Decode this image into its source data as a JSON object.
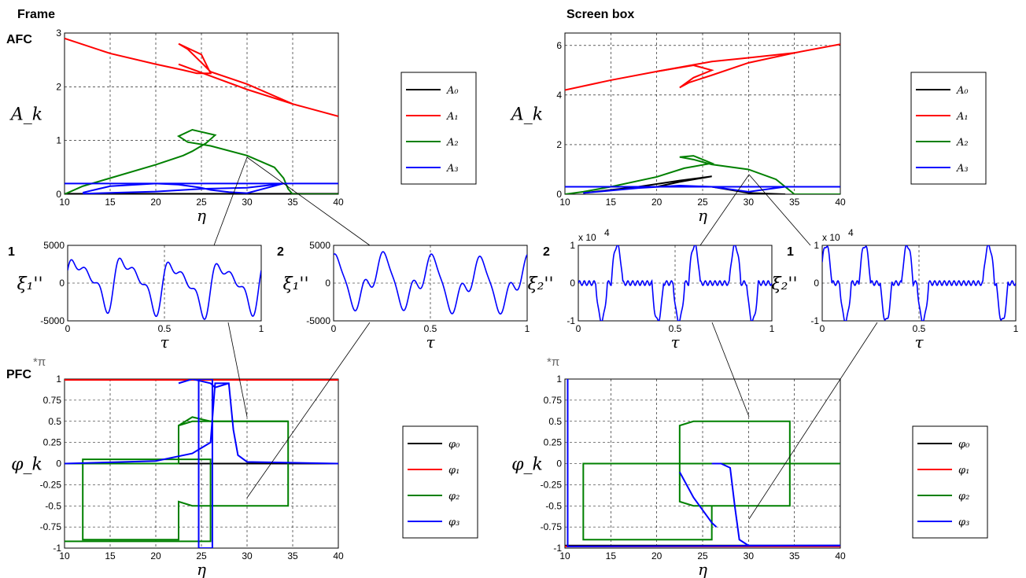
{
  "labels": {
    "frame": "Frame",
    "screen_box": "Screen box",
    "afc": "AFC",
    "pfc": "PFC",
    "panel_1": "1",
    "panel_2": "2",
    "pi_mult": "*π",
    "exp": "x 10"
  },
  "chart_data": [
    {
      "id": "frame-afc",
      "type": "line",
      "xlabel": "η",
      "ylabel": "A_k",
      "xlim": [
        10,
        40
      ],
      "ylim": [
        0,
        3
      ],
      "xticks": [
        10,
        15,
        20,
        25,
        30,
        35,
        40
      ],
      "yticks": [
        0,
        1,
        2,
        3
      ],
      "grid": true,
      "legend": "right",
      "series": [
        {
          "name": "A₀",
          "color": "#000000",
          "x": [
            10,
            40
          ],
          "y": [
            0.01,
            0.01
          ]
        },
        {
          "name": "A₁",
          "color": "#ff0000",
          "x": [
            10,
            15,
            20,
            23,
            24.5,
            26,
            25,
            23.5,
            22.5,
            23.5,
            25,
            26,
            30,
            35,
            40
          ],
          "y": [
            2.9,
            2.62,
            2.42,
            2.31,
            2.25,
            2.25,
            2.6,
            2.72,
            2.8,
            2.7,
            2.45,
            2.28,
            2.05,
            1.68,
            1.45
          ]
        },
        {
          "name": "A₁",
          "color": "#ff0000",
          "x": [
            22.5,
            26,
            30,
            35
          ],
          "y": [
            2.42,
            2.2,
            1.95,
            1.68
          ]
        },
        {
          "name": "A₂",
          "color": "#008000",
          "x": [
            10,
            12,
            15,
            20,
            23,
            24,
            25.5,
            26.5,
            24,
            22.5,
            23.5,
            26,
            30,
            33,
            34,
            34.5,
            35,
            40
          ],
          "y": [
            0,
            0.15,
            0.3,
            0.55,
            0.72,
            0.8,
            0.95,
            1.1,
            1.2,
            1.08,
            0.97,
            0.9,
            0.72,
            0.5,
            0.3,
            0.1,
            0,
            0
          ]
        },
        {
          "name": "A₃",
          "color": "#0000ff",
          "x": [
            10,
            40
          ],
          "y": [
            0.2,
            0.2
          ]
        },
        {
          "name": "A₃",
          "color": "#0000ff",
          "x": [
            12,
            15,
            20,
            22.5,
            25,
            26,
            28,
            30,
            34
          ],
          "y": [
            0.03,
            0.15,
            0.2,
            0.18,
            0.12,
            0.08,
            0.04,
            0.02,
            0.2
          ]
        },
        {
          "name": "A₃",
          "color": "#0000ff",
          "x": [
            12,
            20,
            25,
            30,
            34
          ],
          "y": [
            0.01,
            0.05,
            0.1,
            0.12,
            0.2
          ]
        }
      ]
    },
    {
      "id": "screen-afc",
      "type": "line",
      "xlabel": "η",
      "ylabel": "A_k",
      "xlim": [
        10,
        40
      ],
      "ylim": [
        0,
        6.5
      ],
      "xticks": [
        10,
        15,
        20,
        25,
        30,
        35,
        40
      ],
      "yticks": [
        0,
        2,
        4,
        6
      ],
      "grid": true,
      "legend": "right",
      "series": [
        {
          "name": "A₀",
          "color": "#000000",
          "x": [
            12,
            18,
            22.5,
            26,
            22.5,
            20,
            26,
            30,
            34
          ],
          "y": [
            0.05,
            0.3,
            0.55,
            0.72,
            0.5,
            0.3,
            0.3,
            0.05,
            0.0
          ]
        },
        {
          "name": "A₁",
          "color": "#ff0000",
          "x": [
            10,
            15,
            20,
            24,
            26,
            24,
            22.5,
            23.5,
            26,
            30,
            35,
            40
          ],
          "y": [
            4.2,
            4.6,
            4.95,
            5.2,
            5.0,
            4.7,
            4.3,
            4.5,
            4.8,
            5.3,
            5.7,
            6.05
          ]
        },
        {
          "name": "A₁",
          "color": "#ff0000",
          "x": [
            20,
            26,
            30,
            35
          ],
          "y": [
            4.95,
            5.35,
            5.5,
            5.7
          ]
        },
        {
          "name": "A₂",
          "color": "#008000",
          "x": [
            10,
            12,
            15,
            20,
            23,
            26,
            24,
            22.5,
            24,
            26,
            30,
            33,
            34.5,
            35,
            40
          ],
          "y": [
            0,
            0.1,
            0.3,
            0.7,
            1.05,
            1.25,
            1.55,
            1.5,
            1.4,
            1.2,
            1.0,
            0.6,
            0.15,
            0,
            0
          ]
        },
        {
          "name": "A₃",
          "color": "#0000ff",
          "x": [
            10,
            40
          ],
          "y": [
            0.3,
            0.3
          ]
        },
        {
          "name": "A₃",
          "color": "#0000ff",
          "x": [
            12,
            18,
            22.5,
            26,
            30,
            34
          ],
          "y": [
            0.05,
            0.25,
            0.35,
            0.3,
            0.1,
            0.3
          ]
        }
      ]
    },
    {
      "id": "frame-xi-1",
      "type": "line",
      "xlabel": "τ",
      "ylabel": "ξ₁''",
      "xlim": [
        0,
        1
      ],
      "ylim": [
        -5000,
        5000
      ],
      "xticks": [
        0,
        0.5,
        1
      ],
      "yticks": [
        -5000,
        0,
        5000
      ],
      "ytick_labels": [
        "-5000",
        "0",
        "5000"
      ],
      "grid": true,
      "signal": {
        "color": "#0000ff",
        "components": [
          [
            4,
            2600,
            0.0
          ],
          [
            8,
            1300,
            0.6
          ],
          [
            12,
            900,
            1.2
          ],
          [
            1,
            400,
            0.3
          ]
        ]
      }
    },
    {
      "id": "frame-xi-2",
      "type": "line",
      "xlabel": "τ",
      "ylabel": "ξ₁''",
      "xlim": [
        0,
        1
      ],
      "ylim": [
        -5000,
        5000
      ],
      "xticks": [
        0,
        0.5,
        1
      ],
      "yticks": [
        -5000,
        0,
        5000
      ],
      "ytick_labels": [
        "-5000",
        "0",
        "5000"
      ],
      "grid": true,
      "signal": {
        "color": "#0000ff",
        "components": [
          [
            4,
            2800,
            1.57
          ],
          [
            8,
            1200,
            0.2
          ],
          [
            12,
            800,
            2.0
          ],
          [
            1,
            300,
            0.0
          ]
        ]
      }
    },
    {
      "id": "screen-xi-2",
      "type": "line",
      "xlabel": "τ",
      "ylabel": "ξ₂''",
      "xlim": [
        0,
        1
      ],
      "ylim": [
        -1,
        1
      ],
      "xticks": [
        0,
        0.5,
        1
      ],
      "yticks": [
        -1,
        0,
        1
      ],
      "ytick_labels": [
        "-1",
        "0",
        "1"
      ],
      "exponent": "4",
      "grid": true,
      "pulses": {
        "color": "#0000ff",
        "pos": [
          0.2,
          0.6,
          0.81
        ],
        "neg": [
          0.12,
          0.41,
          0.52,
          0.9
        ]
      }
    },
    {
      "id": "screen-xi-1",
      "type": "line",
      "xlabel": "τ",
      "ylabel": "ξ₂''",
      "xlim": [
        0,
        1
      ],
      "ylim": [
        -1,
        1
      ],
      "xticks": [
        0,
        0.5,
        1
      ],
      "yticks": [
        -1,
        0,
        1
      ],
      "ytick_labels": [
        "-1",
        "0",
        "1"
      ],
      "exponent": "4",
      "grid": true,
      "pulses": {
        "color": "#0000ff",
        "pos": [
          0.02,
          0.22,
          0.44,
          0.86
        ],
        "neg": [
          0.12,
          0.33,
          0.52,
          0.93
        ]
      }
    },
    {
      "id": "frame-pfc",
      "type": "line",
      "xlabel": "η",
      "ylabel": "φ_k",
      "xlim": [
        10,
        40
      ],
      "ylim": [
        -1,
        1
      ],
      "xticks": [
        10,
        15,
        20,
        25,
        30,
        35,
        40
      ],
      "yticks": [
        -1,
        -0.75,
        -0.5,
        -0.25,
        0,
        0.25,
        0.5,
        0.75,
        1
      ],
      "ytick_labels": [
        "-1",
        "-0.75",
        "-0.5",
        "-0.25",
        "0",
        "0.25",
        "0.5",
        "0.75",
        "1"
      ],
      "grid": true,
      "legend": "right",
      "series": [
        {
          "name": "φ₀",
          "color": "#000000",
          "x": [
            10,
            40
          ],
          "y": [
            0.0,
            0.0
          ]
        },
        {
          "name": "φ₁",
          "color": "#ff0000",
          "x": [
            10,
            40
          ],
          "y": [
            0.99,
            0.99
          ]
        },
        {
          "name": "φ₂",
          "color": "#008000",
          "x": [
            10,
            22.5,
            22.5,
            24,
            26,
            34.5,
            34.5,
            26,
            24,
            22.5,
            22.5,
            12,
            12,
            26,
            26,
            10
          ],
          "y": [
            0.0,
            0.0,
            0.45,
            0.5,
            0.5,
            0.5,
            -0.5,
            -0.5,
            -0.5,
            -0.45,
            -0.9,
            -0.9,
            0.05,
            0.05,
            -0.92,
            -0.92
          ]
        },
        {
          "name": "φ₂",
          "color": "#008000",
          "x": [
            22.5,
            24,
            26,
            30,
            34.5
          ],
          "y": [
            0.45,
            0.55,
            0.5,
            0.5,
            0.5
          ]
        },
        {
          "name": "φ₃",
          "color": "#0000ff",
          "x": [
            10,
            20,
            24,
            26,
            26.5,
            28,
            28.5,
            29,
            30,
            40
          ],
          "y": [
            0.0,
            0.03,
            0.12,
            0.25,
            0.95,
            0.95,
            0.4,
            0.1,
            0.02,
            0.0
          ]
        },
        {
          "name": "φ₃",
          "color": "#0000ff",
          "x": [
            24.7,
            24.7,
            26.2,
            26.2,
            24.7
          ],
          "y": [
            1.0,
            -1.0,
            -1.0,
            1.0,
            1.0
          ]
        },
        {
          "name": "φ₃",
          "color": "#0000ff",
          "x": [
            22.5,
            24,
            26,
            26.5,
            28
          ],
          "y": [
            0.95,
            1.0,
            0.95,
            0.9,
            0.95
          ]
        }
      ]
    },
    {
      "id": "screen-pfc",
      "type": "line",
      "xlabel": "η",
      "ylabel": "φ_k",
      "xlim": [
        10,
        40
      ],
      "ylim": [
        -1,
        1
      ],
      "xticks": [
        10,
        15,
        20,
        25,
        30,
        35,
        40
      ],
      "yticks": [
        -1,
        -0.75,
        -0.5,
        -0.25,
        0,
        0.25,
        0.5,
        0.75,
        1
      ],
      "ytick_labels": [
        "-1",
        "-0.75",
        "-0.5",
        "-0.25",
        "0",
        "0.25",
        "0.5",
        "0.75",
        "1"
      ],
      "grid": true,
      "legend": "right",
      "series": [
        {
          "name": "φ₀",
          "color": "#000000",
          "x": [
            10,
            40
          ],
          "y": [
            -0.97,
            -0.97
          ]
        },
        {
          "name": "φ₁",
          "color": "#ff0000",
          "x": [
            10,
            40
          ],
          "y": [
            -0.98,
            -0.98
          ]
        },
        {
          "name": "φ₂",
          "color": "#008000",
          "x": [
            40,
            12,
            12,
            26,
            26,
            34.5,
            34.5,
            26,
            24,
            22.5,
            22.5,
            24,
            26
          ],
          "y": [
            0.0,
            0.0,
            -0.9,
            -0.9,
            -0.5,
            -0.5,
            0.5,
            0.5,
            0.5,
            0.45,
            -0.45,
            -0.5,
            -0.5
          ]
        },
        {
          "name": "φ₃",
          "color": "#0000ff",
          "x": [
            10.3,
            10.3,
            10.5,
            40
          ],
          "y": [
            1.0,
            -0.98,
            -0.98,
            -0.97
          ]
        },
        {
          "name": "φ₃",
          "color": "#0000ff",
          "x": [
            26,
            27,
            28,
            28.5,
            29,
            30,
            40
          ],
          "y": [
            0.0,
            0.0,
            -0.05,
            -0.5,
            -0.9,
            -0.97,
            -0.97
          ]
        },
        {
          "name": "φ₃",
          "color": "#0000ff",
          "x": [
            22.5,
            24,
            26,
            26.5
          ],
          "y": [
            -0.1,
            -0.4,
            -0.7,
            -0.75
          ]
        }
      ]
    }
  ]
}
